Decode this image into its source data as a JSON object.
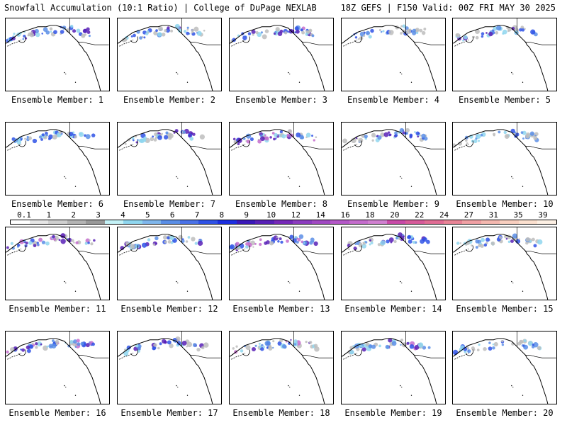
{
  "header": {
    "left_title": "Snowfall Accumulation (10:1 Ratio) | College of DuPage NEXLAB",
    "right_title": "18Z GEFS | F150 Valid: 00Z FRI MAY 30 2025"
  },
  "members": [
    {
      "label": "Ensemble Member: 1",
      "intensity": 0.55
    },
    {
      "label": "Ensemble Member: 2",
      "intensity": 0.5
    },
    {
      "label": "Ensemble Member: 3",
      "intensity": 0.6
    },
    {
      "label": "Ensemble Member: 4",
      "intensity": 0.45
    },
    {
      "label": "Ensemble Member: 5",
      "intensity": 0.5
    },
    {
      "label": "Ensemble Member: 6",
      "intensity": 0.45
    },
    {
      "label": "Ensemble Member: 7",
      "intensity": 0.55
    },
    {
      "label": "Ensemble Member: 8",
      "intensity": 0.75
    },
    {
      "label": "Ensemble Member: 9",
      "intensity": 0.55
    },
    {
      "label": "Ensemble Member: 10",
      "intensity": 0.4
    },
    {
      "label": "Ensemble Member: 11",
      "intensity": 0.6
    },
    {
      "label": "Ensemble Member: 12",
      "intensity": 0.5
    },
    {
      "label": "Ensemble Member: 13",
      "intensity": 0.7
    },
    {
      "label": "Ensemble Member: 14",
      "intensity": 0.55
    },
    {
      "label": "Ensemble Member: 15",
      "intensity": 0.5
    },
    {
      "label": "Ensemble Member: 16",
      "intensity": 0.65
    },
    {
      "label": "Ensemble Member: 17",
      "intensity": 0.55
    },
    {
      "label": "Ensemble Member: 18",
      "intensity": 0.6
    },
    {
      "label": "Ensemble Member: 19",
      "intensity": 0.6
    },
    {
      "label": "Ensemble Member: 20",
      "intensity": 0.45
    }
  ],
  "colorbar": {
    "labels": [
      "0.1",
      "1",
      "2",
      "3",
      "4",
      "5",
      "6",
      "7",
      "8",
      "9",
      "10",
      "12",
      "14",
      "16",
      "18",
      "20",
      "22",
      "24",
      "27",
      "31",
      "35",
      "39"
    ],
    "colors": [
      "#ffffff",
      "#e6e6e6",
      "#cfcfcf",
      "#b4b4b4",
      "#999999",
      "#c4f2f7",
      "#8fd6ef",
      "#7fb6ec",
      "#5a8ee6",
      "#4a72e8",
      "#2f52e6",
      "#1c2ee0",
      "#3a18b8",
      "#5820b6",
      "#7628b8",
      "#8c3cc0",
      "#a048c2",
      "#b458c8",
      "#c46ccc",
      "#d080d0",
      "#c84aa8",
      "#d65a9a",
      "#e06c94",
      "#e88496",
      "#f0a0a4",
      "#f4b8b0",
      "#f8cfc0",
      "#fbe0cf",
      "#fdf0e4"
    ]
  }
}
